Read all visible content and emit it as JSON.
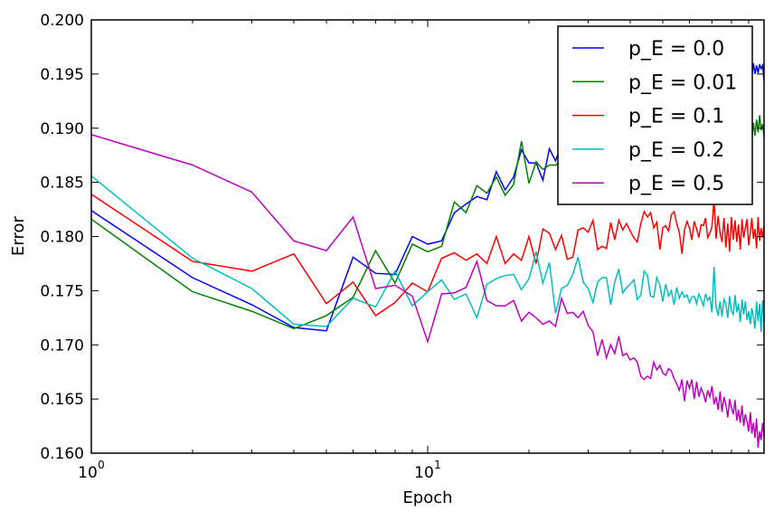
{
  "chart_data": {
    "type": "line",
    "title": "",
    "xlabel": "Epoch",
    "ylabel": "Error",
    "xscale": "log",
    "xlim": [
      1,
      100
    ],
    "ylim": [
      0.16,
      0.2
    ],
    "yticks": [
      "0.160",
      "0.165",
      "0.170",
      "0.175",
      "0.180",
      "0.185",
      "0.190",
      "0.195",
      "0.200"
    ],
    "xticks": [
      {
        "base": "10",
        "exp": "0",
        "value": 1
      },
      {
        "base": "10",
        "exp": "1",
        "value": 10
      }
    ],
    "legend_position": "top-right",
    "series": [
      {
        "name": "p_E = 0.0",
        "color": "#0000ff",
        "values": [
          0.1824,
          0.1762,
          0.1737,
          0.1716,
          0.1713,
          0.1781,
          0.1766,
          0.1765,
          0.18,
          0.1793,
          0.1796,
          0.1822,
          0.183,
          0.1837,
          0.1834,
          0.186,
          0.1843,
          0.1855,
          0.188,
          0.1868,
          0.1868,
          0.1852,
          0.1881,
          0.187,
          0.1885,
          0.1872,
          0.189,
          0.1879,
          0.1894,
          0.1884,
          0.1898,
          0.1887,
          0.1901,
          0.189,
          0.1905,
          0.1894,
          0.1908,
          0.1897,
          0.191,
          0.19,
          0.1913,
          0.1903,
          0.1915,
          0.1905,
          0.1918,
          0.1908,
          0.192,
          0.191,
          0.1922,
          0.1912,
          0.1924,
          0.1914,
          0.1926,
          0.1916,
          0.1927,
          0.1918,
          0.1929,
          0.192,
          0.1931,
          0.1921,
          0.1932,
          0.1923,
          0.1933,
          0.1925,
          0.1935,
          0.1926,
          0.1936,
          0.1928,
          0.1938,
          0.1929,
          0.1939,
          0.1931,
          0.194,
          0.1932,
          0.1941,
          0.1934,
          0.1942,
          0.1936,
          0.1944,
          0.1938,
          0.1945,
          0.194,
          0.1946,
          0.1941,
          0.1947,
          0.1943,
          0.1948,
          0.1945,
          0.195,
          0.1946,
          0.1952,
          0.1948,
          0.196,
          0.195,
          0.1958,
          0.1951,
          0.1959,
          0.1955,
          0.1958,
          0.1944
        ]
      },
      {
        "name": "p_E = 0.01",
        "color": "#008000",
        "values": [
          0.1816,
          0.1749,
          0.1731,
          0.1715,
          0.1727,
          0.1744,
          0.1787,
          0.1757,
          0.1793,
          0.1786,
          0.1791,
          0.1832,
          0.1822,
          0.1847,
          0.184,
          0.1855,
          0.1838,
          0.1848,
          0.1888,
          0.1849,
          0.1869,
          0.1862,
          0.1866,
          0.1866,
          0.187,
          0.1862,
          0.1874,
          0.1865,
          0.1877,
          0.1868,
          0.1879,
          0.187,
          0.1881,
          0.1872,
          0.1883,
          0.1874,
          0.1884,
          0.1875,
          0.1886,
          0.1877,
          0.1887,
          0.1878,
          0.1888,
          0.1879,
          0.1889,
          0.188,
          0.189,
          0.1881,
          0.1891,
          0.1882,
          0.1892,
          0.1883,
          0.1892,
          0.1884,
          0.1893,
          0.1884,
          0.1894,
          0.1885,
          0.1894,
          0.1886,
          0.1895,
          0.1886,
          0.1895,
          0.1887,
          0.1896,
          0.1887,
          0.1896,
          0.1888,
          0.1897,
          0.1888,
          0.1897,
          0.1889,
          0.1898,
          0.1889,
          0.1898,
          0.189,
          0.1899,
          0.189,
          0.1899,
          0.1891,
          0.19,
          0.1891,
          0.19,
          0.1892,
          0.1901,
          0.1892,
          0.1901,
          0.1893,
          0.1902,
          0.1893,
          0.1902,
          0.189,
          0.1905,
          0.1893,
          0.1908,
          0.1896,
          0.1912,
          0.1898,
          0.1904,
          0.1892
        ]
      },
      {
        "name": "p_E = 0.1",
        "color": "#ff0000",
        "values": [
          0.1839,
          0.1777,
          0.1768,
          0.1784,
          0.1738,
          0.1758,
          0.1727,
          0.1739,
          0.1757,
          0.1749,
          0.178,
          0.1785,
          0.1778,
          0.1784,
          0.1775,
          0.18,
          0.1775,
          0.1784,
          0.1778,
          0.18,
          0.1775,
          0.1807,
          0.1803,
          0.1788,
          0.1801,
          0.1779,
          0.1781,
          0.1806,
          0.1808,
          0.1804,
          0.1815,
          0.1788,
          0.1791,
          0.1789,
          0.1813,
          0.1797,
          0.1815,
          0.1806,
          0.1812,
          0.1805,
          0.1799,
          0.1795,
          0.1812,
          0.1823,
          0.1818,
          0.1822,
          0.1808,
          0.1813,
          0.1788,
          0.1808,
          0.181,
          0.1805,
          0.182,
          0.1823,
          0.1812,
          0.1804,
          0.1784,
          0.1806,
          0.1814,
          0.1808,
          0.1797,
          0.1814,
          0.1807,
          0.1799,
          0.1811,
          0.181,
          0.1817,
          0.1799,
          0.1803,
          0.1809,
          0.1834,
          0.1798,
          0.1819,
          0.1803,
          0.1795,
          0.1817,
          0.179,
          0.1812,
          0.1786,
          0.1818,
          0.1797,
          0.1815,
          0.1795,
          0.1811,
          0.1788,
          0.1816,
          0.1799,
          0.1808,
          0.1816,
          0.1792,
          0.1804,
          0.1817,
          0.1798,
          0.1807,
          0.1789,
          0.1818,
          0.1796,
          0.1808,
          0.1799,
          0.181
        ]
      },
      {
        "name": "p_E = 0.2",
        "color": "#00bfbf",
        "values": [
          0.1856,
          0.178,
          0.1752,
          0.1719,
          0.1717,
          0.1743,
          0.1735,
          0.1768,
          0.1736,
          0.1749,
          0.176,
          0.1742,
          0.1747,
          0.1725,
          0.1756,
          0.1761,
          0.1764,
          0.1765,
          0.1751,
          0.1761,
          0.1786,
          0.1757,
          0.1776,
          0.1729,
          0.1752,
          0.1755,
          0.1765,
          0.1781,
          0.1758,
          0.1752,
          0.1739,
          0.1758,
          0.1762,
          0.1762,
          0.1737,
          0.1758,
          0.177,
          0.1748,
          0.1753,
          0.1756,
          0.176,
          0.1742,
          0.1746,
          0.1768,
          0.1764,
          0.1745,
          0.1744,
          0.1762,
          0.1755,
          0.174,
          0.1756,
          0.1745,
          0.175,
          0.1737,
          0.1753,
          0.1743,
          0.1749,
          0.1744,
          0.1746,
          0.1739,
          0.1744,
          0.1745,
          0.1738,
          0.1747,
          0.1742,
          0.1736,
          0.1747,
          0.1741,
          0.1744,
          0.173,
          0.1772,
          0.1735,
          0.1727,
          0.174,
          0.1726,
          0.1742,
          0.1738,
          0.1725,
          0.1745,
          0.1731,
          0.1728,
          0.1746,
          0.173,
          0.1738,
          0.1721,
          0.1742,
          0.1728,
          0.174,
          0.1723,
          0.1731,
          0.1719,
          0.1734,
          0.1726,
          0.1715,
          0.174,
          0.1722,
          0.1738,
          0.1712,
          0.1741,
          0.1722
        ]
      },
      {
        "name": "p_E = 0.5",
        "color": "#bf00bf",
        "values": [
          0.1894,
          0.1866,
          0.1841,
          0.1796,
          0.1787,
          0.1818,
          0.1752,
          0.1755,
          0.1745,
          0.1703,
          0.1747,
          0.1748,
          0.1753,
          0.1777,
          0.1741,
          0.1736,
          0.1736,
          0.1741,
          0.1722,
          0.173,
          0.1725,
          0.1719,
          0.1722,
          0.1717,
          0.1743,
          0.1729,
          0.173,
          0.1725,
          0.1731,
          0.1718,
          0.1712,
          0.169,
          0.1705,
          0.1688,
          0.17,
          0.1692,
          0.1708,
          0.169,
          0.1692,
          0.1686,
          0.1688,
          0.1684,
          0.1671,
          0.1668,
          0.1671,
          0.1669,
          0.1684,
          0.1677,
          0.1681,
          0.1674,
          0.1672,
          0.1678,
          0.1676,
          0.1669,
          0.1664,
          0.1658,
          0.1668,
          0.1648,
          0.1667,
          0.166,
          0.1668,
          0.165,
          0.1666,
          0.1652,
          0.166,
          0.1655,
          0.1647,
          0.1658,
          0.1652,
          0.1662,
          0.1645,
          0.1652,
          0.164,
          0.1657,
          0.1638,
          0.1652,
          0.1645,
          0.1633,
          0.165,
          0.1642,
          0.1636,
          0.1649,
          0.163,
          0.164,
          0.1628,
          0.1644,
          0.1625,
          0.1636,
          0.1629,
          0.162,
          0.1638,
          0.1618,
          0.1628,
          0.1614,
          0.1632,
          0.1605,
          0.162,
          0.1612,
          0.1628,
          0.1616
        ]
      }
    ]
  }
}
